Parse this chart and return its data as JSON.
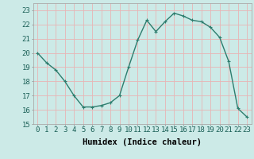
{
  "x": [
    0,
    1,
    2,
    3,
    4,
    5,
    6,
    7,
    8,
    9,
    10,
    11,
    12,
    13,
    14,
    15,
    16,
    17,
    18,
    19,
    20,
    21,
    22,
    23
  ],
  "y": [
    20.0,
    19.3,
    18.8,
    18.0,
    17.0,
    16.2,
    16.2,
    16.3,
    16.5,
    17.0,
    19.0,
    20.9,
    22.3,
    21.5,
    22.2,
    22.8,
    22.6,
    22.3,
    22.2,
    21.8,
    21.1,
    19.4,
    16.1,
    15.5
  ],
  "line_color": "#2d7d6e",
  "marker_color": "#2d7d6e",
  "bg_color": "#cceae7",
  "grid_color": "#e8b4b4",
  "xlabel": "Humidex (Indice chaleur)",
  "xlim": [
    -0.5,
    23.5
  ],
  "ylim": [
    15,
    23.5
  ],
  "yticks": [
    15,
    16,
    17,
    18,
    19,
    20,
    21,
    22,
    23
  ],
  "xticks": [
    0,
    1,
    2,
    3,
    4,
    5,
    6,
    7,
    8,
    9,
    10,
    11,
    12,
    13,
    14,
    15,
    16,
    17,
    18,
    19,
    20,
    21,
    22,
    23
  ],
  "xlabel_fontsize": 7.5,
  "tick_fontsize": 6.5,
  "line_width": 1.0,
  "marker_size": 2.5
}
